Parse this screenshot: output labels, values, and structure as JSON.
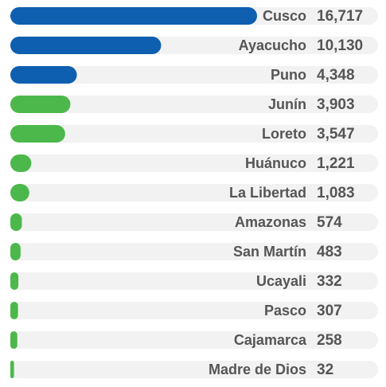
{
  "chart_data": {
    "type": "bar",
    "orientation": "horizontal",
    "categories": [
      "Cusco",
      "Ayacucho",
      "Puno",
      "Junín",
      "Loreto",
      "Huánuco",
      "La Libertad",
      "Amazonas",
      "San Martín",
      "Ucayali",
      "Pasco",
      "Cajamarca",
      "Madre de Dios"
    ],
    "values": [
      16717,
      10130,
      4348,
      3903,
      3547,
      1221,
      1083,
      574,
      483,
      332,
      307,
      258,
      32
    ],
    "value_labels": [
      "16,717",
      "10,130",
      "4,348",
      "3,903",
      "3,547",
      "1,221",
      "1,083",
      "574",
      "483",
      "332",
      "307",
      "258",
      "32"
    ],
    "colors": [
      "#0f5fb0",
      "#0f5fb0",
      "#0f5fb0",
      "#4cb84c",
      "#4cb84c",
      "#4cb84c",
      "#4cb84c",
      "#4cb84c",
      "#4cb84c",
      "#4cb84c",
      "#4cb84c",
      "#4cb84c",
      "#4cb84c"
    ],
    "track_color": "#f2f2f2"
  }
}
